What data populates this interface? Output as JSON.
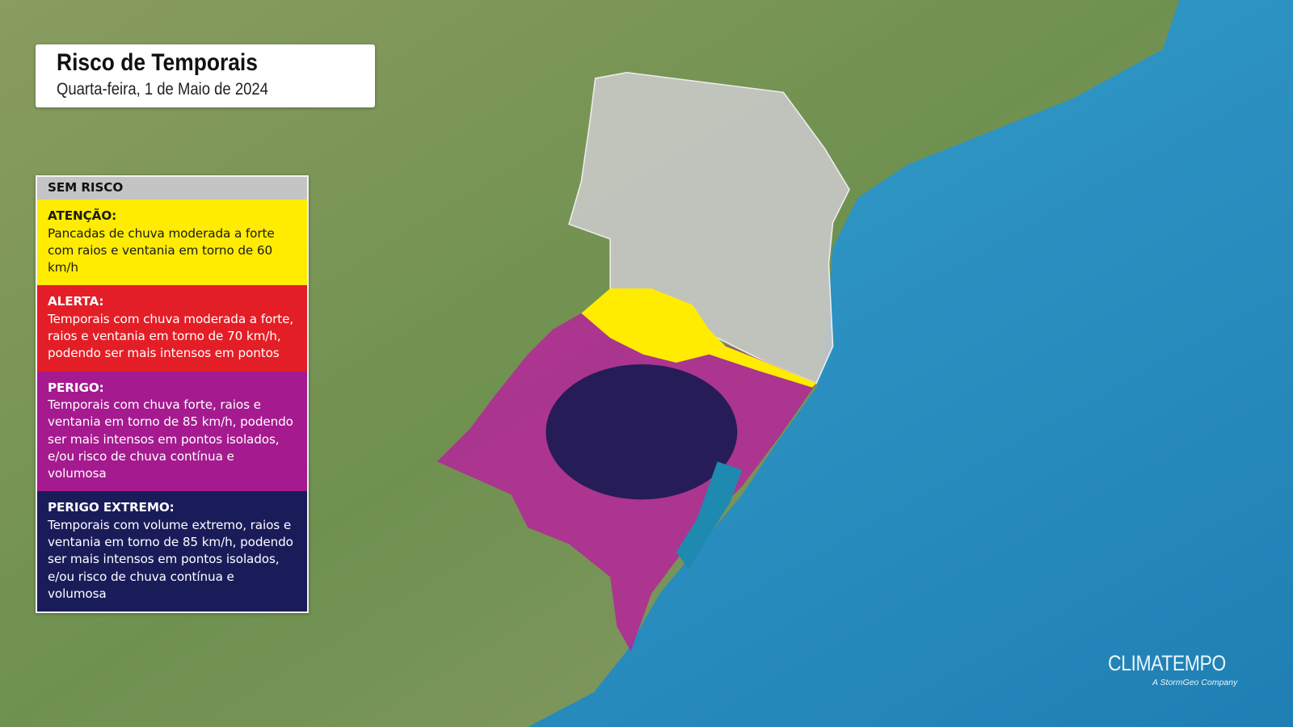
{
  "header": {
    "title": "Risco de Temporais",
    "date": "Quarta-feira, 1 de Maio de 2024"
  },
  "legend": {
    "items": [
      {
        "title": "SEM RISCO",
        "description": "",
        "color": "#c4c4c4"
      },
      {
        "title": "ATENÇÃO:",
        "description": "Pancadas de chuva moderada a forte com raios e ventania em torno de 60 km/h",
        "color": "#ffec00"
      },
      {
        "title": "ALERTA:",
        "description": "Temporais com chuva moderada a forte, raios e ventania em torno de 70 km/h, podendo ser mais intensos em pontos",
        "color": "#e41e26"
      },
      {
        "title": "PERIGO:",
        "description": "Temporais com chuva forte, raios e ventania em torno de 85 km/h, podendo ser mais intensos em pontos isolados, e/ou risco de chuva contínua e volumosa",
        "color": "#a51a8f"
      },
      {
        "title": "PERIGO EXTREMO:",
        "description": "Temporais com volume extremo, raios e ventania em torno de 85 km/h, podendo ser mais intensos em pontos isolados, e/ou risco de chuva contínua e volumosa",
        "color": "#1a1c5a"
      }
    ]
  },
  "branding": {
    "logo": "CLIMATEMPO",
    "tagline": "A StormGeo Company"
  },
  "colors": {
    "ocean": "#2a8fc0",
    "land": "#7a9a55",
    "no_risk": "#c4c4c4",
    "attention": "#ffec00",
    "danger": "#a51a8f",
    "extreme_danger": "#1a1c5a"
  }
}
